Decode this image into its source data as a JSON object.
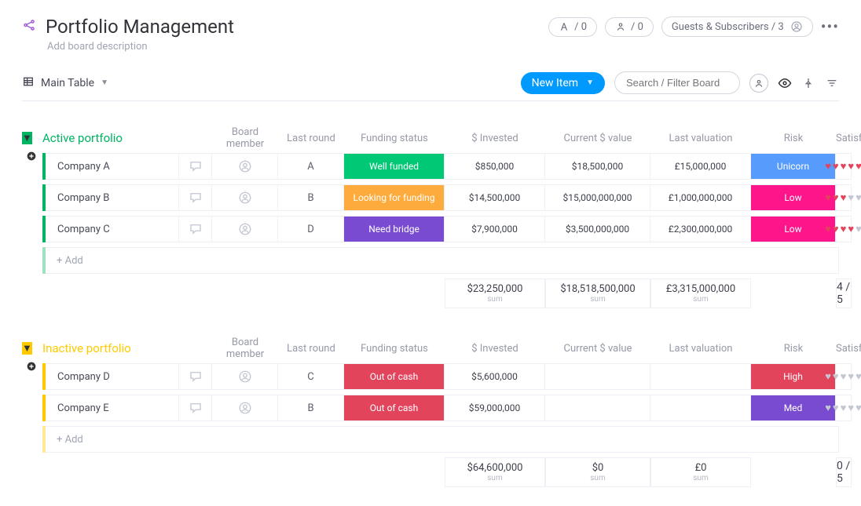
{
  "header": {
    "title": "Portfolio Management",
    "subtitle": "Add board description",
    "pill1_count": "/ 0",
    "pill2_count": "/ 0",
    "guests_label": "Guests & Subscribers / 3"
  },
  "toolbar": {
    "view_label": "Main Table",
    "new_item_label": "New Item",
    "search_placeholder": "Search / Filter Board"
  },
  "columns": {
    "board_member": "Board member",
    "last_round": "Last round",
    "funding_status": "Funding status",
    "invested": "$ Invested",
    "current_value": "Current $ value",
    "last_valuation": "Last valuation",
    "risk": "Risk",
    "satisfaction": "Satisfaction"
  },
  "colors": {
    "active_accent": "#00b461",
    "inactive_accent": "#ffcb00",
    "funding_well": "#00c875",
    "funding_looking": "#fdab3d",
    "funding_bridge": "#784bd1",
    "funding_out": "#e2445c",
    "risk_unicorn": "#579bfc",
    "risk_low": "#ff158a",
    "risk_high": "#e2445c",
    "risk_med": "#784bd1",
    "heart_on": "#e2445c",
    "heart_off": "#c4c7d2",
    "add_accent_active": "#9de3c2",
    "add_accent_inactive": "#ffe999"
  },
  "groups": [
    {
      "title": "Active portfolio",
      "accent_color": "#00b461",
      "add_accent_color": "#9de3c2",
      "add_label": "+ Add",
      "rows": [
        {
          "name": "Company A",
          "round": "A",
          "funding": "Well funded",
          "funding_color": "#00c875",
          "invested": "$850,000",
          "current": "$18,500,000",
          "valuation": "£15,000,000",
          "risk": "Unicorn",
          "risk_color": "#579bfc",
          "sat": 5
        },
        {
          "name": "Company B",
          "round": "B",
          "funding": "Looking for funding",
          "funding_color": "#fdab3d",
          "invested": "$14,500,000",
          "current": "$15,000,000,000",
          "valuation": "£1,000,000,000",
          "risk": "Low",
          "risk_color": "#ff158a",
          "sat": 3
        },
        {
          "name": "Company C",
          "round": "D",
          "funding": "Need bridge",
          "funding_color": "#784bd1",
          "invested": "$7,900,000",
          "current": "$3,500,000,000",
          "valuation": "£2,300,000,000",
          "risk": "Low",
          "risk_color": "#ff158a",
          "sat": 4
        }
      ],
      "sums": {
        "invested": "$23,250,000",
        "current": "$18,518,500,000",
        "valuation": "£3,315,000,000",
        "sat": "4 / 5"
      }
    },
    {
      "title": "Inactive portfolio",
      "accent_color": "#ffcb00",
      "add_accent_color": "#ffe999",
      "add_label": "+ Add",
      "rows": [
        {
          "name": "Company D",
          "round": "C",
          "funding": "Out of cash",
          "funding_color": "#e2445c",
          "invested": "$5,600,000",
          "current": "",
          "valuation": "",
          "risk": "High",
          "risk_color": "#e2445c",
          "sat": 0
        },
        {
          "name": "Company E",
          "round": "B",
          "funding": "Out of cash",
          "funding_color": "#e2445c",
          "invested": "$59,000,000",
          "current": "",
          "valuation": "",
          "risk": "Med",
          "risk_color": "#784bd1",
          "sat": 0
        }
      ],
      "sums": {
        "invested": "$64,600,000",
        "current": "$0",
        "valuation": "£0",
        "sat": "0 / 5"
      }
    }
  ],
  "sum_label": "sum"
}
